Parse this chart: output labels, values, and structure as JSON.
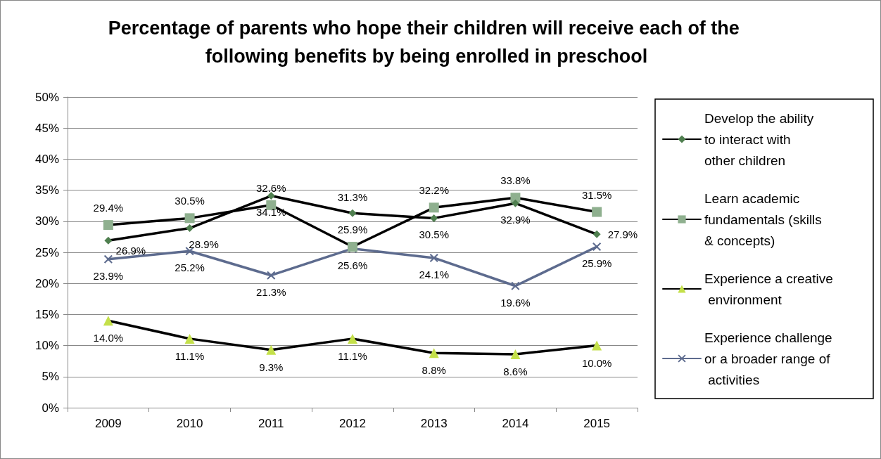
{
  "chart_data": {
    "type": "line",
    "title": "Percentage of parents who hope their children will receive each of the following benefits by being enrolled in preschool",
    "categories": [
      "2009",
      "2010",
      "2011",
      "2012",
      "2013",
      "2014",
      "2015"
    ],
    "series": [
      {
        "name": "Develop the ability to interact with other children",
        "color": "#000000",
        "colors": [
          "#4f7f4f",
          "#4f7f4f",
          "#4f7f4f",
          "#4f7f4f",
          "#4f7f4f",
          "#4f7f4f",
          "#4f7f4f"
        ],
        "marker": "diamond",
        "values": [
          26.9,
          28.9,
          34.1,
          31.3,
          30.5,
          32.9,
          27.9
        ],
        "value_labels": [
          "26.9%",
          "28.9%",
          "34.1%",
          "31.3%",
          "30.5%",
          "32.9%",
          "27.9%"
        ]
      },
      {
        "name": "Learn academic fundamentals (skills & concepts)",
        "color": "#000000",
        "colors": [
          "#8fb08f",
          "#8fb08f",
          "#8fb08f",
          "#8fb08f",
          "#8fb08f",
          "#8fb08f",
          "#8fb08f"
        ],
        "marker": "square",
        "values": [
          29.4,
          30.5,
          32.6,
          25.9,
          32.2,
          33.8,
          31.5
        ],
        "value_labels": [
          "29.4%",
          "30.5%",
          "32.6%",
          "25.9%",
          "32.2%",
          "33.8%",
          "31.5%"
        ]
      },
      {
        "name": "Experience a creative environment",
        "color": "#000000",
        "colors": [
          "#c4e04a",
          "#c4e04a",
          "#c4e04a",
          "#c4e04a",
          "#c4e04a",
          "#c4e04a",
          "#c4e04a"
        ],
        "marker": "triangle",
        "values": [
          14.0,
          11.1,
          9.3,
          11.1,
          8.8,
          8.6,
          10.0
        ],
        "value_labels": [
          "14.0%",
          "11.1%",
          "9.3%",
          "11.1%",
          "8.8%",
          "8.6%",
          "10.0%"
        ]
      },
      {
        "name": "Experience challenge or a broader range of activities",
        "color": "#5d6b8e",
        "colors": [
          "#5d6b8e",
          "#5d6b8e",
          "#5d6b8e",
          "#5d6b8e",
          "#5d6b8e",
          "#5d6b8e",
          "#5d6b8e"
        ],
        "marker": "cross",
        "values": [
          23.9,
          25.2,
          21.3,
          25.6,
          24.1,
          19.6,
          25.9
        ],
        "value_labels": [
          "23.9%",
          "25.2%",
          "21.3%",
          "25.6%",
          "24.1%",
          "19.6%",
          "25.9%"
        ]
      }
    ],
    "ylim": [
      0,
      50
    ],
    "yticks": [
      {
        "value": 0,
        "label": "0%"
      },
      {
        "value": 5,
        "label": "5%"
      },
      {
        "value": 10,
        "label": "10%"
      },
      {
        "value": 15,
        "label": "15%"
      },
      {
        "value": 20,
        "label": "20%"
      },
      {
        "value": 25,
        "label": "25%"
      },
      {
        "value": 30,
        "label": "30%"
      },
      {
        "value": 35,
        "label": "35%"
      },
      {
        "value": 40,
        "label": "40%"
      },
      {
        "value": 45,
        "label": "45%"
      },
      {
        "value": 50,
        "label": "50%"
      }
    ],
    "grid": "y",
    "legend": "right",
    "line_style": "solid"
  }
}
